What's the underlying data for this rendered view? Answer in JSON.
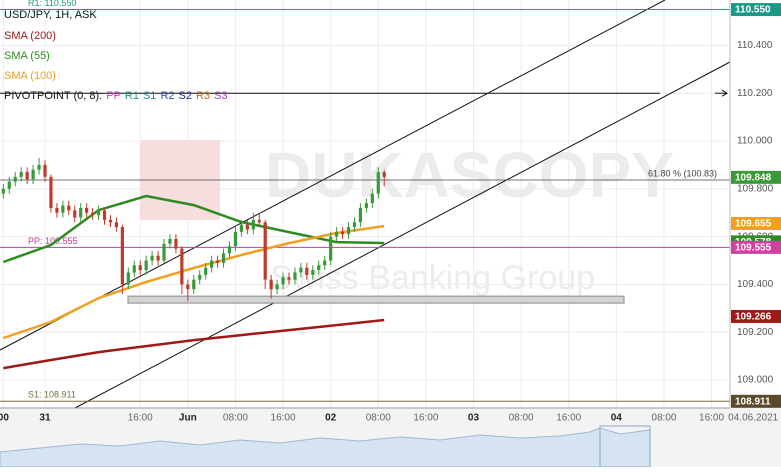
{
  "chart_data": {
    "type": "candlestick",
    "title": "USD/JPY, 1H, ASK",
    "up_color": "#3a9a3a",
    "down_color": "#c0392b",
    "open": [
      109.78,
      109.8,
      109.83,
      109.85,
      109.87,
      109.84,
      109.88,
      109.9,
      109.85,
      109.72,
      109.7,
      109.73,
      109.71,
      109.68,
      109.72,
      109.7,
      109.69,
      109.71,
      109.67,
      109.66,
      109.64,
      109.4,
      109.45,
      109.48,
      109.46,
      109.5,
      109.52,
      109.5,
      109.57,
      109.59,
      109.55,
      109.4,
      109.38,
      109.42,
      109.44,
      109.47,
      109.5,
      109.49,
      109.53,
      109.56,
      109.62,
      109.65,
      109.63,
      109.67,
      109.66,
      109.42,
      109.38,
      109.4,
      109.43,
      109.42,
      109.45,
      109.47,
      109.44,
      109.46,
      109.48,
      109.5,
      109.6,
      109.62,
      109.61,
      109.64,
      109.66,
      109.72,
      109.74,
      109.78,
      109.87
    ],
    "high": [
      109.82,
      109.85,
      109.87,
      109.89,
      109.89,
      109.9,
      109.93,
      109.92,
      109.86,
      109.74,
      109.75,
      109.75,
      109.73,
      109.74,
      109.74,
      109.72,
      109.73,
      109.72,
      109.69,
      109.68,
      109.65,
      109.47,
      109.5,
      109.5,
      109.52,
      109.54,
      109.54,
      109.59,
      109.61,
      109.61,
      109.56,
      109.42,
      109.44,
      109.46,
      109.49,
      109.52,
      109.52,
      109.55,
      109.58,
      109.64,
      109.67,
      109.67,
      109.7,
      109.7,
      109.67,
      109.44,
      109.42,
      109.45,
      109.45,
      109.47,
      109.49,
      109.49,
      109.48,
      109.5,
      109.52,
      109.62,
      109.64,
      109.64,
      109.66,
      109.68,
      109.74,
      109.76,
      109.8,
      109.89,
      109.88
    ],
    "low": [
      109.76,
      109.78,
      109.81,
      109.83,
      109.82,
      109.82,
      109.86,
      109.83,
      109.7,
      109.68,
      109.68,
      109.69,
      109.66,
      109.66,
      109.68,
      109.67,
      109.67,
      109.65,
      109.64,
      109.62,
      109.36,
      109.38,
      109.43,
      109.44,
      109.44,
      109.48,
      109.48,
      109.49,
      109.55,
      109.53,
      109.36,
      109.33,
      109.36,
      109.4,
      109.42,
      109.45,
      109.47,
      109.47,
      109.51,
      109.54,
      109.6,
      109.61,
      109.61,
      109.64,
      109.38,
      109.34,
      109.36,
      109.38,
      109.4,
      109.4,
      109.43,
      109.42,
      109.42,
      109.44,
      109.46,
      109.48,
      109.58,
      109.59,
      109.59,
      109.62,
      109.64,
      109.7,
      109.72,
      109.76,
      109.81
    ],
    "close": [
      109.8,
      109.83,
      109.85,
      109.87,
      109.84,
      109.88,
      109.9,
      109.85,
      109.72,
      109.7,
      109.73,
      109.71,
      109.68,
      109.72,
      109.7,
      109.69,
      109.71,
      109.67,
      109.66,
      109.64,
      109.4,
      109.45,
      109.48,
      109.46,
      109.5,
      109.52,
      109.5,
      109.57,
      109.59,
      109.55,
      109.4,
      109.38,
      109.42,
      109.44,
      109.47,
      109.5,
      109.49,
      109.53,
      109.56,
      109.62,
      109.65,
      109.63,
      109.67,
      109.66,
      109.42,
      109.38,
      109.4,
      109.43,
      109.42,
      109.45,
      109.47,
      109.44,
      109.46,
      109.48,
      109.5,
      109.6,
      109.62,
      109.61,
      109.64,
      109.66,
      109.72,
      109.74,
      109.78,
      109.87,
      109.85
    ],
    "xlim": [
      -0.56,
      122.1
    ],
    "xticks": [
      {
        "value": 0,
        "label": "00"
      },
      {
        "value": 7,
        "label": "31"
      },
      {
        "value": 23,
        "label": "16:00"
      },
      {
        "value": 31,
        "label": "Jun"
      },
      {
        "value": 39,
        "label": "08:00"
      },
      {
        "value": 47,
        "label": "16:00"
      },
      {
        "value": 55,
        "label": "02"
      },
      {
        "value": 63,
        "label": "08:00"
      },
      {
        "value": 71,
        "label": "16:00"
      },
      {
        "value": 79,
        "label": "03"
      },
      {
        "value": 87,
        "label": "08:00"
      },
      {
        "value": 95,
        "label": "16:00"
      },
      {
        "value": 103,
        "label": "04"
      },
      {
        "value": 111,
        "label": "08:00"
      },
      {
        "value": 119,
        "label": "16:00"
      },
      {
        "value": 126,
        "label": "04.06.2021"
      }
    ],
    "ylim": [
      108.883,
      110.59
    ],
    "yticks": [
      {
        "value": 110.4,
        "label": "110.400"
      },
      {
        "value": 110.2,
        "label": "110.200"
      },
      {
        "value": 110.0,
        "label": "110.000"
      },
      {
        "value": 109.8,
        "label": "109.800"
      },
      {
        "value": 109.6,
        "label": "109.600"
      },
      {
        "value": 109.4,
        "label": "109.400"
      },
      {
        "value": 109.2,
        "label": "109.200"
      },
      {
        "value": 109.0,
        "label": "109.000"
      }
    ],
    "indicators": [
      {
        "name": "SMA (200)",
        "color": "#a01818",
        "x": [
          0,
          8,
          16,
          24,
          32,
          40,
          48,
          56,
          64
        ],
        "values": [
          109.05,
          109.084,
          109.117,
          109.142,
          109.167,
          109.188,
          109.209,
          109.23,
          109.251
        ]
      },
      {
        "name": "SMA (55)",
        "color": "#2e8b22",
        "x": [
          0,
          8,
          16,
          24,
          32,
          40,
          48,
          56,
          64
        ],
        "values": [
          109.494,
          109.565,
          109.711,
          109.77,
          109.732,
          109.661,
          109.619,
          109.577,
          109.573
        ]
      },
      {
        "name": "SMA (100)",
        "color": "#f0a020",
        "x": [
          0,
          8,
          16,
          24,
          32,
          40,
          48,
          56,
          64
        ],
        "values": [
          109.176,
          109.243,
          109.343,
          109.41,
          109.469,
          109.523,
          109.573,
          109.615,
          109.644
        ]
      }
    ],
    "pivot": {
      "label": "PIVOTPOINT (0, 8):",
      "levels": [
        {
          "name": "PP",
          "color": "#d040c0"
        },
        {
          "name": "R1",
          "color": "#1a9a86"
        },
        {
          "name": "S1",
          "color": "#2a8aa0"
        },
        {
          "name": "R2",
          "color": "#3050c0"
        },
        {
          "name": "S2",
          "color": "#203080"
        },
        {
          "name": "R3",
          "color": "#c07020"
        },
        {
          "name": "S3",
          "color": "#a040b0"
        }
      ]
    },
    "horizontal_line": 110.2,
    "levels": [
      {
        "label": "R1: 110.550",
        "value": 110.55,
        "color": "#1a9a86"
      },
      {
        "label": "PP: 109.555",
        "value": 109.555,
        "color": "#c040a0"
      },
      {
        "label": "S1: 108.911",
        "value": 108.911,
        "color": "#7a6a3a"
      },
      {
        "label": "61.80 % (100.83)",
        "value": 109.837,
        "color": "#444444"
      }
    ],
    "zone": {
      "from": 109.322,
      "to": 109.351
    },
    "price_tags": [
      {
        "value": 110.55,
        "label": "110.550",
        "color": "#1a9a86"
      },
      {
        "value": 109.848,
        "label": "109.848",
        "color": "#3a9a3a"
      },
      {
        "value": 109.655,
        "label": "109.655",
        "color": "#f0a020"
      },
      {
        "value": 109.578,
        "label": "109.578",
        "color": "#2e8b22"
      },
      {
        "value": 109.555,
        "label": "109.555",
        "color": "#d040a0"
      },
      {
        "value": 109.266,
        "label": "109.266",
        "color": "#a01818"
      },
      {
        "value": 108.911,
        "label": "108.911",
        "color": "#5a4a2a"
      }
    ],
    "watermark": [
      "DUKASCOPY",
      "Swiss Banking Group"
    ]
  }
}
